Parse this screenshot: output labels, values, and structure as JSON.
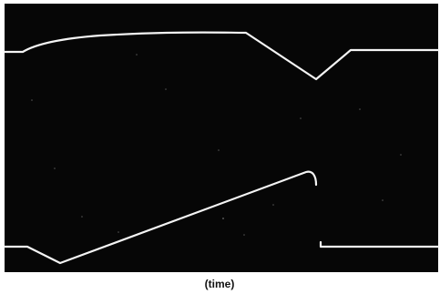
{
  "caption": "(time)"
}
